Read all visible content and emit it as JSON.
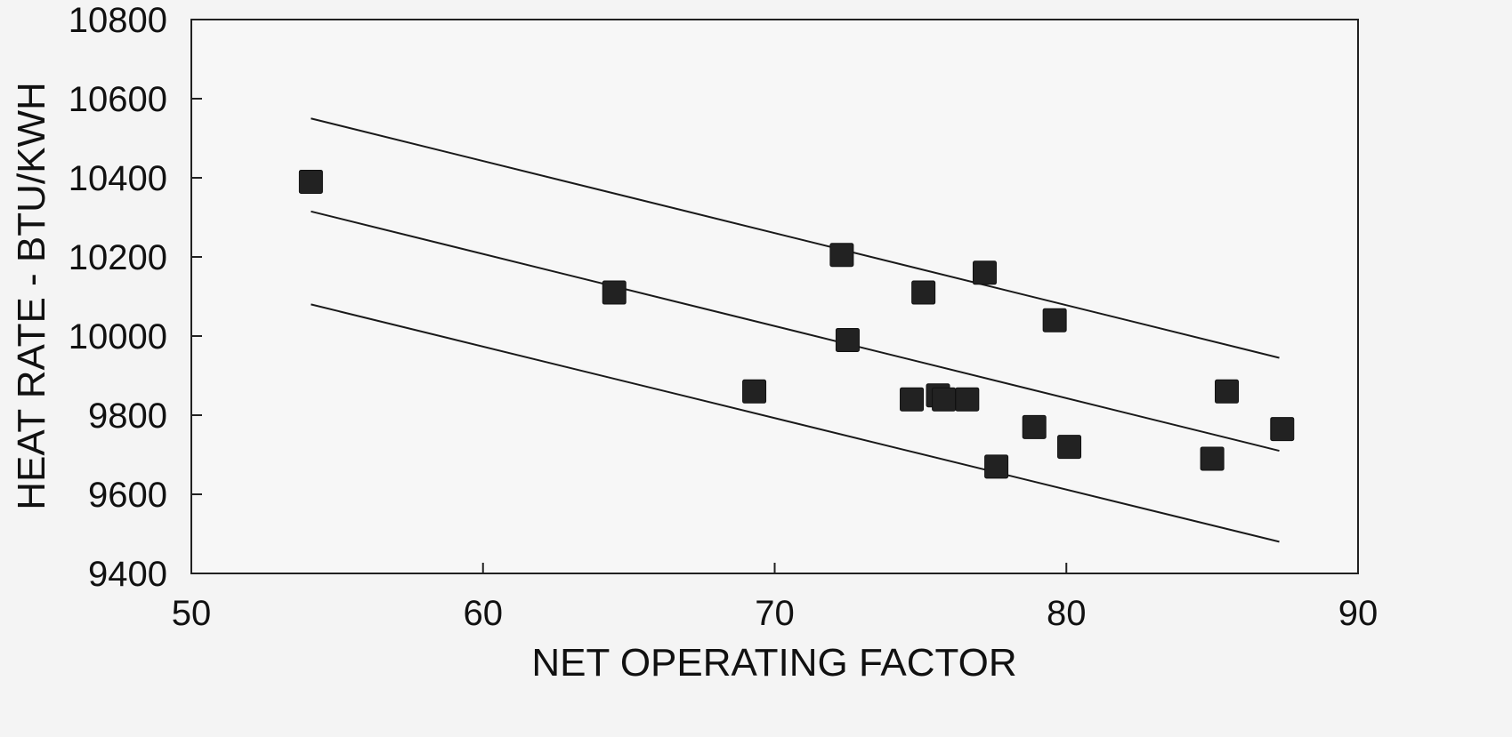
{
  "chart_data": {
    "type": "scatter",
    "title": "",
    "xlabel": "NET OPERATING FACTOR",
    "ylabel": "HEAT RATE - BTU/KWH",
    "xlim": [
      50,
      90
    ],
    "ylim": [
      9400,
      10800
    ],
    "x_ticks": [
      50,
      60,
      70,
      80,
      90
    ],
    "y_ticks": [
      9400,
      9600,
      9800,
      10000,
      10200,
      10400,
      10600,
      10800
    ],
    "grid": false,
    "legend": "none",
    "series": [
      {
        "marker": "square",
        "color": "#222222",
        "points": [
          {
            "x": 54.1,
            "y": 10390
          },
          {
            "x": 64.5,
            "y": 10110
          },
          {
            "x": 69.3,
            "y": 9860
          },
          {
            "x": 72.3,
            "y": 10205
          },
          {
            "x": 72.5,
            "y": 9990
          },
          {
            "x": 74.7,
            "y": 9840
          },
          {
            "x": 75.1,
            "y": 10110
          },
          {
            "x": 75.6,
            "y": 9850
          },
          {
            "x": 75.8,
            "y": 9840
          },
          {
            "x": 76.6,
            "y": 9840
          },
          {
            "x": 77.2,
            "y": 10160
          },
          {
            "x": 77.6,
            "y": 9670
          },
          {
            "x": 78.9,
            "y": 9770
          },
          {
            "x": 79.6,
            "y": 10040
          },
          {
            "x": 80.1,
            "y": 9720
          },
          {
            "x": 85.0,
            "y": 9690
          },
          {
            "x": 85.5,
            "y": 9860
          },
          {
            "x": 87.4,
            "y": 9765
          }
        ]
      }
    ],
    "lines": [
      {
        "role": "upper",
        "x": [
          54.1,
          87.3
        ],
        "y": [
          10550,
          9945
        ]
      },
      {
        "role": "fit",
        "x": [
          54.1,
          87.3
        ],
        "y": [
          10315,
          9710
        ]
      },
      {
        "role": "lower",
        "x": [
          54.1,
          87.3
        ],
        "y": [
          10080,
          9480
        ]
      }
    ]
  }
}
